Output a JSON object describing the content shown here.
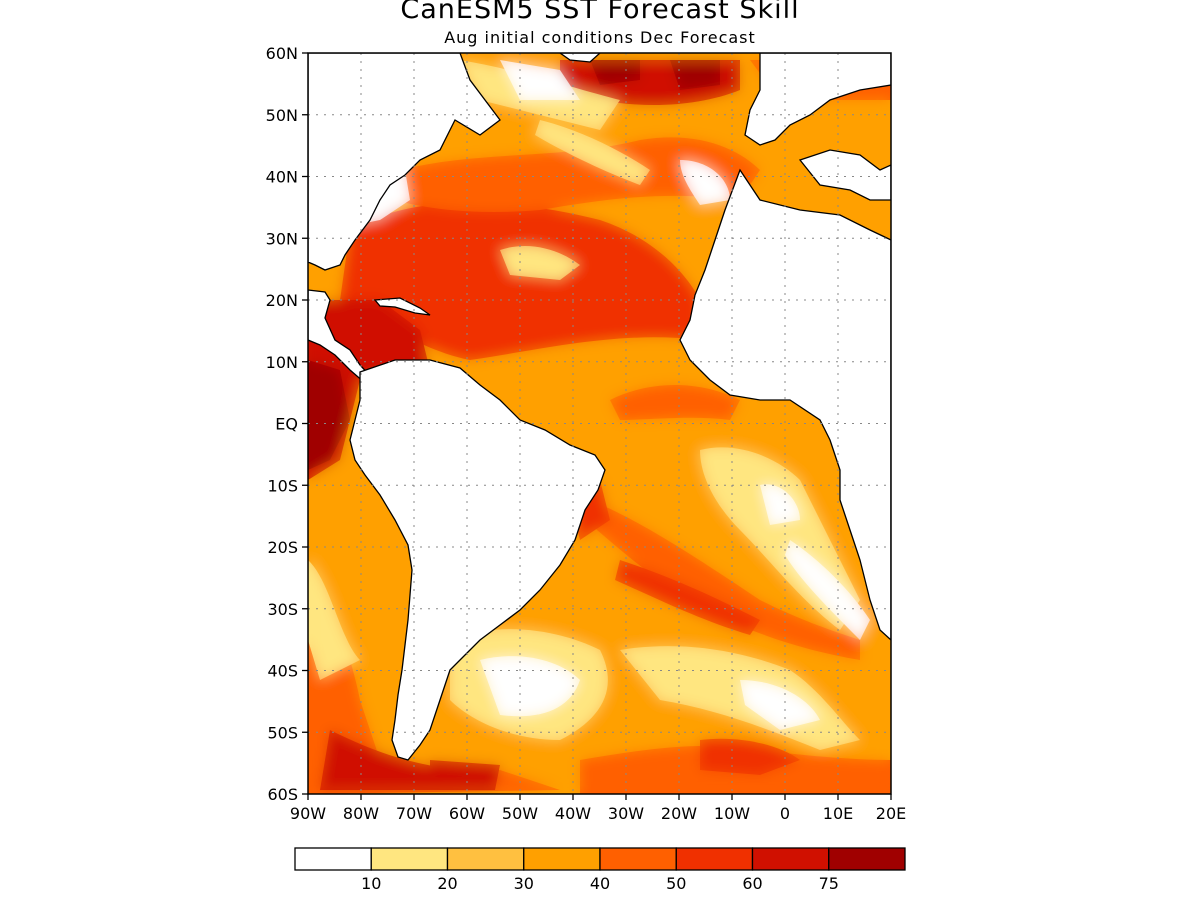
{
  "title": "CanESM5 SST Forecast Skill",
  "subtitle": "Aug initial conditions  Dec Forecast",
  "map": {
    "lon_range": [
      -90,
      20
    ],
    "lat_range": [
      -60,
      60
    ],
    "lat_labels": [
      "60N",
      "50N",
      "40N",
      "30N",
      "20N",
      "10N",
      "EQ",
      "10S",
      "20S",
      "30S",
      "40S",
      "50S",
      "60S"
    ],
    "lon_labels": [
      "90W",
      "80W",
      "70W",
      "60W",
      "50W",
      "40W",
      "30W",
      "20W",
      "10W",
      "0",
      "10E",
      "20E"
    ],
    "gridlines": "dotted",
    "land_color": "#ffffff"
  },
  "colorbar": {
    "colors": [
      "#ffffff",
      "#ffe680",
      "#ffc040",
      "#ffa000",
      "#ff6000",
      "#f03000",
      "#d01000",
      "#a00000"
    ],
    "labels": [
      "10",
      "20",
      "30",
      "40",
      "50",
      "60",
      "75"
    ]
  }
}
